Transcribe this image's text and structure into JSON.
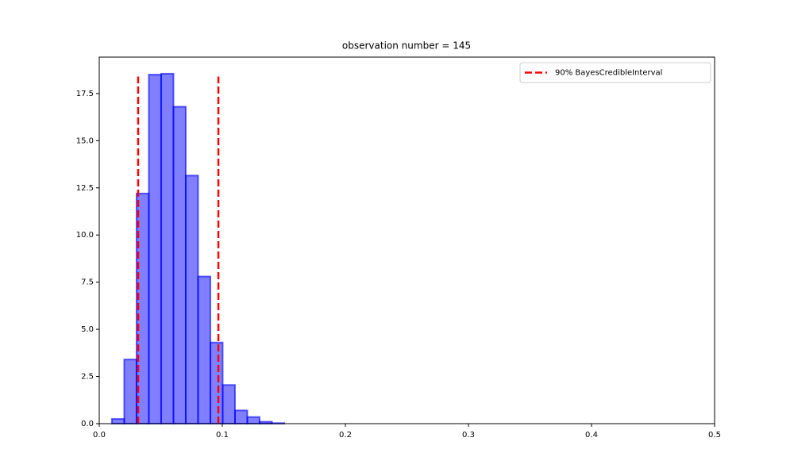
{
  "chart_data": {
    "type": "histogram",
    "title": "observation number = 145",
    "bins": [
      0.0103,
      0.0203,
      0.0303,
      0.0403,
      0.0503,
      0.0603,
      0.0703,
      0.0803,
      0.0903,
      0.1003,
      0.1103,
      0.1203,
      0.1303,
      0.1403,
      0.1503
    ],
    "values": [
      0.25,
      3.4,
      12.2,
      18.5,
      18.55,
      16.8,
      13.15,
      7.8,
      4.3,
      2.05,
      0.7,
      0.35,
      0.1,
      0.03
    ],
    "color": "#0000ff",
    "vlines": {
      "name": "90% BayesCredibleInterval",
      "color": "#ff0000",
      "x": [
        0.0316,
        0.0968
      ],
      "ymin": 0,
      "ymax": 18.4
    },
    "xlim": [
      0,
      0.5
    ],
    "xticks": [
      {
        "value": 0,
        "label": "0.0"
      },
      0.1,
      0.2,
      0.3,
      0.4,
      0.5
    ],
    "ylim": [
      0,
      19.43
    ],
    "yticks": [
      {
        "value": 0,
        "label": "0.0"
      },
      2.5,
      {
        "value": 5,
        "label": "5.0"
      },
      7.5,
      {
        "value": 10,
        "label": "10.0"
      },
      12.5,
      {
        "value": 15,
        "label": "15.0"
      },
      17.5
    ],
    "legend": "upper right"
  }
}
